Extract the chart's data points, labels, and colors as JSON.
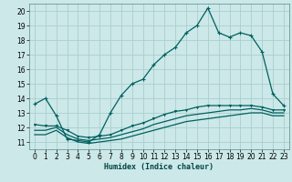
{
  "xlabel": "Humidex (Indice chaleur)",
  "background_color": "#cce8e8",
  "grid_color": "#aacece",
  "line_color": "#006060",
  "xlim": [
    -0.5,
    23.5
  ],
  "ylim": [
    10.5,
    20.5
  ],
  "yticks": [
    11,
    12,
    13,
    14,
    15,
    16,
    17,
    18,
    19,
    20
  ],
  "xticks": [
    0,
    1,
    2,
    3,
    4,
    5,
    6,
    7,
    8,
    9,
    10,
    11,
    12,
    13,
    14,
    15,
    16,
    17,
    18,
    19,
    20,
    21,
    22,
    23
  ],
  "series_main": [
    13.6,
    14.0,
    12.8,
    11.2,
    11.1,
    11.0,
    11.5,
    13.0,
    14.2,
    15.0,
    15.3,
    16.3,
    17.0,
    17.5,
    18.5,
    19.0,
    20.2,
    18.5,
    18.2,
    18.5,
    18.3,
    17.2,
    14.3,
    13.5
  ],
  "series_flat1": [
    11.5,
    11.5,
    11.8,
    11.3,
    11.0,
    10.9,
    11.0,
    11.1,
    11.2,
    11.4,
    11.6,
    11.8,
    12.0,
    12.2,
    12.4,
    12.5,
    12.6,
    12.7,
    12.8,
    12.9,
    13.0,
    13.0,
    12.8,
    12.8
  ],
  "series_flat2": [
    11.8,
    11.8,
    12.0,
    11.5,
    11.2,
    11.1,
    11.2,
    11.3,
    11.5,
    11.7,
    11.9,
    12.2,
    12.4,
    12.6,
    12.8,
    12.9,
    13.0,
    13.1,
    13.2,
    13.2,
    13.3,
    13.2,
    13.0,
    13.0
  ],
  "series_flat3": [
    12.2,
    12.1,
    12.1,
    11.8,
    11.4,
    11.3,
    11.4,
    11.5,
    11.8,
    12.1,
    12.3,
    12.6,
    12.9,
    13.1,
    13.2,
    13.4,
    13.5,
    13.5,
    13.5,
    13.5,
    13.5,
    13.4,
    13.2,
    13.2
  ],
  "xlabel_fontsize": 6.0,
  "tick_fontsize": 5.5,
  "linewidth": 0.9,
  "marker_size": 2.5
}
